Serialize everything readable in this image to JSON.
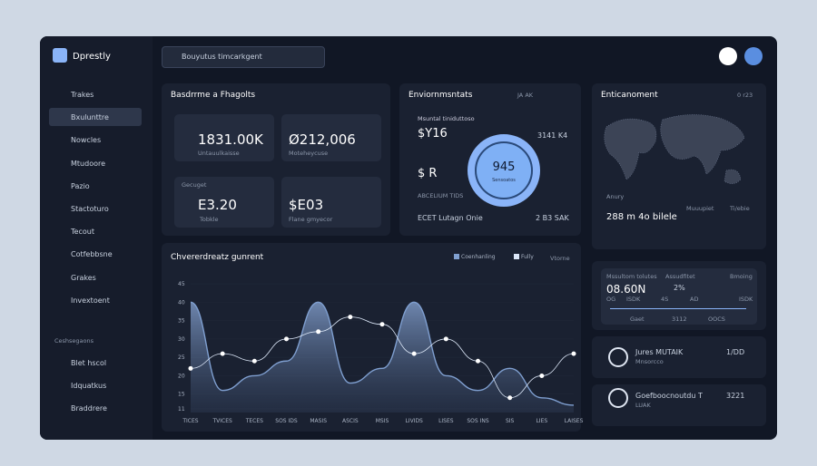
{
  "sidebar": {
    "brand": "Dprestly",
    "items": [
      "Trakes",
      "Bxulunttre",
      "Nowcles",
      "Mtudoore",
      "Pazio",
      "Stactoturo",
      "Tecout",
      "Cotfebbsne",
      "Grakes",
      "Invextoent"
    ],
    "section": "Ceshsegaons",
    "bottom_items": [
      "Blet hscol",
      "Idquatkus",
      "Braddrere"
    ]
  },
  "search": {
    "placeholder": "Bouyutus timcarkgent"
  },
  "panel1": {
    "title": "Basdrrme a Fhagolts",
    "cards": [
      {
        "value": "1831.00K",
        "label": "Untauulkaisse"
      },
      {
        "value": "Ø212,006",
        "label": "Moteheycuse"
      },
      {
        "top": "Gecuget",
        "value": "E3.20",
        "label": "Tobkle"
      },
      {
        "value": "$E03",
        "label": "Flane gmyecor"
      }
    ]
  },
  "panel2": {
    "title": "Enviornmsntats",
    "meta": "JA AK",
    "subtitle": "Msuntal tiniduttoso",
    "v1": "$Y16",
    "v2": "$ R",
    "donut": "945",
    "donut_label": "Sensoatos",
    "r1": "3141 K4",
    "sub2": "ABCELIUM TIDS",
    "foot1": "ECET Lutagn Onie",
    "foot2": "2 B3 SAK"
  },
  "panel3": {
    "title": "Enticanoment",
    "meta": "0 r23",
    "label1": "Anury",
    "stat": "288 m 4o bilele",
    "stat2": "Muuupiet",
    "stat3": "Ti/ebie"
  },
  "panel4": {
    "headers": [
      "Mssultom tolutes",
      "Assudfitet",
      "Bmoing"
    ],
    "value": "08.60N",
    "v2": "2%",
    "row": [
      "OG",
      "ISDK",
      "4S",
      "AD",
      "ISDK"
    ],
    "foot": [
      "Gaet",
      "3112",
      "OOCS"
    ]
  },
  "list": [
    {
      "title": "Jures MUTAIK",
      "sub": "Mnsorcco",
      "value": "1/DD"
    },
    {
      "title": "Goefboocnoutdu T",
      "sub": "LUAK",
      "value": "3221"
    }
  ],
  "chart_data": {
    "type": "area",
    "title": "Chvererdreatz gunrent",
    "button": "Vtorne",
    "categories": [
      "TICES",
      "TVICES",
      "TECES",
      "SOS IDS",
      "MASIS",
      "ASCIS",
      "MSIS",
      "LIVIDS",
      "LISES",
      "SOS INS",
      "SIS",
      "LIES",
      "LAISES"
    ],
    "series": [
      {
        "name": "Coenhanling",
        "color": "#7f9fd0",
        "values": [
          40,
          16,
          20,
          24,
          40,
          18,
          22,
          40,
          20,
          16,
          22,
          14,
          12
        ]
      },
      {
        "name": "Fully",
        "color": "#dbe6f7",
        "values": [
          22,
          26,
          24,
          30,
          32,
          36,
          34,
          26,
          30,
          24,
          14,
          20,
          26
        ]
      }
    ],
    "ylim": [
      10,
      47
    ],
    "yticks": [
      11,
      15,
      20,
      25,
      30,
      35,
      40,
      45
    ]
  }
}
